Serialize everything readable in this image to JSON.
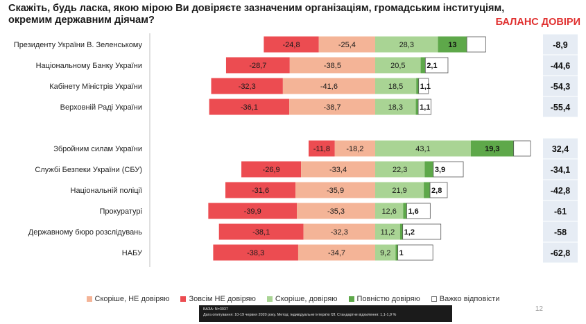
{
  "header": {
    "title": "Скажіть, будь ласка, якою мірою Ви довіряєте зазначеним організаціям, громадським інституціям, окремим державним діячам?",
    "balance_title": "БАЛАНС ДОВІРИ"
  },
  "chart_data": {
    "type": "bar",
    "orientation": "horizontal-diverging",
    "title": "Скажіть, будь ласка, якою мірою Ви довіряєте зазначеним організаціям, громадським інституціям, окремим державним діячам?",
    "xlabel": "",
    "ylabel": "",
    "categories": [
      "Президенту України В. Зеленському",
      "Національному Банку України",
      "Кабінету Міністрів України",
      "Верховній Раді України",
      "Збройним силам України",
      "Службі Безпеки України (СБУ)",
      "Національній поліції",
      "Прокуратурі",
      "Державному бюро розслідувань",
      "НАБУ"
    ],
    "series": [
      {
        "name": "Зовсім НЕ довіряю",
        "color": "#ec4c51",
        "values": [
          -24.8,
          -28.7,
          -32.3,
          -36.1,
          -11.8,
          -26.9,
          -31.6,
          -39.9,
          -38.1,
          -38.3
        ]
      },
      {
        "name": "Скоріше, НЕ довіряю",
        "color": "#f4b497",
        "values": [
          -25.4,
          -38.5,
          -41.6,
          -38.7,
          -18.2,
          -33.4,
          -35.9,
          -35.3,
          -32.3,
          -34.7
        ]
      },
      {
        "name": "Скоріше, довіряю",
        "color": "#a9d494",
        "values": [
          28.3,
          20.5,
          18.5,
          18.3,
          43.1,
          22.3,
          21.9,
          12.6,
          11.2,
          9.2
        ]
      },
      {
        "name": "Повністю довіряю",
        "color": "#5ea84a",
        "values": [
          13,
          2.1,
          1.1,
          1.1,
          19.3,
          3.9,
          2.8,
          1.6,
          1.2,
          1
        ]
      },
      {
        "name": "Важко відповісти",
        "color": "#ffffff",
        "values": [
          8.5,
          10.2,
          4.4,
          5.8,
          7.6,
          13.5,
          7.8,
          10.6,
          17.2,
          15.8
        ]
      }
    ],
    "balance_values": [
      "-8,9",
      "-44,6",
      "-54,3",
      "-55,4",
      "32,4",
      "-34,1",
      "-42,8",
      "-61",
      "-58",
      "-62,8"
    ],
    "grid": false,
    "legend_position": "bottom"
  },
  "legend": {
    "items": [
      {
        "label": "Скоріше, НЕ довіряю",
        "color": "#f4b497"
      },
      {
        "label": "Зовсім НЕ довіряю",
        "color": "#ec4c51"
      },
      {
        "label": "Скоріше, довіряю",
        "color": "#a9d494"
      },
      {
        "label": "Повністю довіряю",
        "color": "#5ea84a"
      },
      {
        "label": "Важко відповісти",
        "color": "#ffffff"
      }
    ]
  },
  "footer": {
    "base": "БАЗА: N=3037",
    "method": "Дата опитування: 10-19 червня 2020 року. Метод: індивідуальне інтерв'ю f2f. Стандартне відхилення: 1,1-1,9 %",
    "page": "12"
  }
}
